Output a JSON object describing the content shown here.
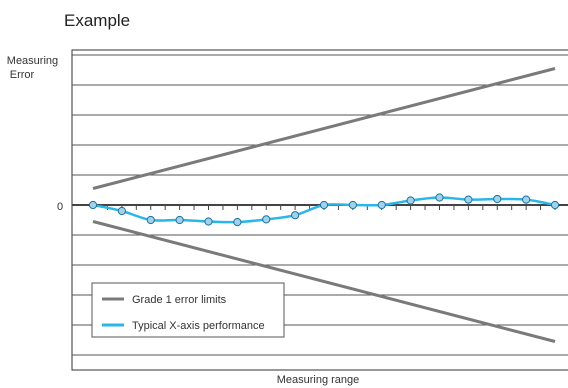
{
  "chart_data": {
    "type": "line",
    "title": "Example",
    "ylabel": [
      "Measuring",
      "Error"
    ],
    "xlabel": "Measuring range",
    "y_tick_labels": [
      {
        "value": 0,
        "label": "0"
      }
    ],
    "ylim": [
      -6,
      6
    ],
    "xlim": [
      0,
      1
    ],
    "grid": true,
    "legend_position": "bottom-left",
    "colors": {
      "limits": "#7a7a7a",
      "performance": "#29b6e8",
      "marker_fill": "#9fd3ec",
      "marker_stroke": "#1f6f9a",
      "axis": "#333333",
      "grid": "#555555",
      "zero_line": "#444444"
    },
    "series": [
      {
        "name": "Grade 1 error limits",
        "style": "limit",
        "segments": [
          {
            "x": [
              0.0,
              1.0
            ],
            "y": [
              0.55,
              4.55
            ]
          },
          {
            "x": [
              0.0,
              1.0
            ],
            "y": [
              -0.55,
              -4.55
            ]
          }
        ]
      },
      {
        "name": "Typical X-axis performance",
        "style": "performance",
        "x": [
          0.0,
          0.0625,
          0.125,
          0.1875,
          0.25,
          0.3125,
          0.375,
          0.4375,
          0.5,
          0.5625,
          0.625,
          0.6875,
          0.75,
          0.8125,
          0.875,
          0.9375,
          1.0
        ],
        "y": [
          0.0,
          -0.2,
          -0.5,
          -0.5,
          -0.55,
          -0.57,
          -0.48,
          -0.34,
          0.0,
          0.0,
          0.0,
          0.15,
          0.25,
          0.18,
          0.2,
          0.18,
          0.0
        ]
      }
    ],
    "legend": [
      {
        "label": "Grade 1 error limits",
        "series": "limits"
      },
      {
        "label": "Typical X-axis performance",
        "series": "performance"
      }
    ]
  }
}
